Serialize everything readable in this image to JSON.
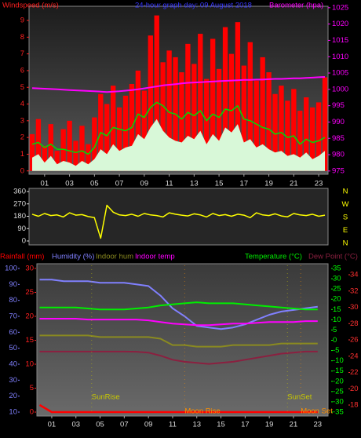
{
  "chart_data": [
    {
      "type": "line",
      "title": "24-hour graph day:  09 August 2018",
      "y_label": "Windspeed (m/s)",
      "y2_label": "Barometer (hpa)",
      "x": [
        0,
        0.5,
        1,
        1.5,
        2,
        2.5,
        3,
        3.5,
        4,
        4.5,
        5,
        5.5,
        6,
        6.5,
        7,
        7.5,
        8,
        8.5,
        9,
        9.5,
        10,
        10.5,
        11,
        11.5,
        12,
        12.5,
        13,
        13.5,
        14,
        14.5,
        15,
        15.5,
        16,
        16.5,
        17,
        17.5,
        18,
        18.5,
        19,
        19.5,
        20,
        20.5,
        21,
        21.5,
        22,
        22.5,
        23,
        23.5
      ],
      "xlim": [
        -0.25,
        23.75
      ],
      "xticks": [
        {
          "value": 1,
          "label": "01"
        },
        {
          "value": 3,
          "label": "03"
        },
        {
          "value": 5,
          "label": "05"
        },
        {
          "value": 7,
          "label": "07"
        },
        {
          "value": 9,
          "label": "09"
        },
        {
          "value": 11,
          "label": "11"
        },
        {
          "value": 13,
          "label": "13"
        },
        {
          "value": 15,
          "label": "15"
        },
        {
          "value": 17,
          "label": "17"
        },
        {
          "value": 19,
          "label": "19"
        },
        {
          "value": 21,
          "label": "21"
        },
        {
          "value": 23,
          "label": "23"
        }
      ],
      "ylim": [
        -0.2,
        9.8
      ],
      "yticks": [
        0,
        1,
        2,
        3,
        4,
        5,
        6,
        7,
        8,
        9
      ],
      "y2lim": [
        974,
        1025.2
      ],
      "y2ticks": [
        975,
        980,
        985,
        990,
        995,
        1000,
        1005,
        1010,
        1015,
        1020,
        1025
      ],
      "series": [
        {
          "color": "#ff0000",
          "mark": "bar",
          "values": [
            2.2,
            3.1,
            1.5,
            2.8,
            1.2,
            2.5,
            3.0,
            1.8,
            2.7,
            1.6,
            3.2,
            4.6,
            4.0,
            5.1,
            3.8,
            4.5,
            5.2,
            6.0,
            4.8,
            8.1,
            9.3,
            6.5,
            7.2,
            6.8,
            5.9,
            7.6,
            6.4,
            8.2,
            5.5,
            7.9,
            6.1,
            8.6,
            7.0,
            8.9,
            6.3,
            7.7,
            5.4,
            6.8,
            5.9,
            4.6,
            5.1,
            4.2,
            4.9,
            3.6,
            4.4,
            3.8,
            4.1,
            5.6
          ]
        },
        {
          "color": "#d8f8d8",
          "mark": "area",
          "values": [
            0.8,
            1.0,
            0.5,
            0.9,
            0.4,
            0.6,
            0.5,
            0.3,
            0.6,
            0.4,
            0.7,
            1.3,
            1.0,
            1.6,
            1.2,
            1.4,
            1.5,
            2.2,
            1.9,
            2.6,
            3.1,
            2.4,
            2.0,
            1.8,
            1.7,
            2.1,
            1.9,
            2.4,
            1.6,
            2.2,
            1.8,
            2.6,
            2.3,
            2.8,
            1.7,
            1.9,
            1.4,
            1.6,
            1.3,
            1.1,
            1.2,
            0.9,
            1.0,
            0.8,
            1.1,
            0.7,
            0.9,
            1.2
          ]
        },
        {
          "color": "#00dd00",
          "mark": "line",
          "values": [
            1.6,
            1.7,
            1.4,
            1.6,
            1.3,
            1.3,
            1.2,
            1.1,
            1.2,
            1.0,
            1.4,
            2.3,
            2.1,
            2.6,
            2.5,
            2.4,
            2.6,
            3.4,
            3.2,
            3.8,
            4.1,
            3.9,
            3.5,
            3.4,
            3.1,
            3.5,
            3.3,
            3.6,
            3.0,
            3.4,
            3.2,
            3.7,
            3.6,
            3.9,
            3.1,
            3.0,
            2.8,
            2.6,
            2.5,
            2.2,
            2.3,
            2.0,
            2.1,
            1.6,
            1.9,
            1.7,
            1.8,
            2.0
          ]
        },
        {
          "color": "#ff00ff",
          "mark": "line",
          "axis": "y2",
          "values": [
            1000.4,
            1000.3,
            1000.2,
            1000.1,
            1000.0,
            999.9,
            999.8,
            999.7,
            999.6,
            999.5,
            999.4,
            999.3,
            999.2,
            999.3,
            999.4,
            999.6,
            999.8,
            1000.0,
            1000.3,
            1000.6,
            1000.9,
            1001.2,
            1001.4,
            1001.6,
            1001.8,
            1002.0,
            1002.1,
            1002.2,
            1002.3,
            1002.4,
            1002.5,
            1002.6,
            1002.7,
            1002.8,
            1002.9,
            1002.9,
            1003.0,
            1003.0,
            1003.1,
            1003.2,
            1003.2,
            1003.3,
            1003.4,
            1003.4,
            1003.5,
            1003.6,
            1003.7,
            1003.8
          ]
        }
      ]
    },
    {
      "type": "line",
      "x": [
        0,
        0.5,
        1,
        1.5,
        2,
        2.5,
        3,
        3.5,
        4,
        4.5,
        5,
        5.5,
        6,
        6.5,
        7,
        7.5,
        8,
        8.5,
        9,
        9.5,
        10,
        10.5,
        11,
        11.5,
        12,
        12.5,
        13,
        13.5,
        14,
        14.5,
        15,
        15.5,
        16,
        16.5,
        17,
        17.5,
        18,
        18.5,
        19,
        19.5,
        20,
        20.5,
        21,
        21.5,
        22,
        22.5,
        23,
        23.5
      ],
      "xlim": [
        -0.25,
        23.75
      ],
      "ylim": [
        0,
        360
      ],
      "yticks": [
        0,
        90,
        180,
        270,
        360
      ],
      "y2lim": [
        0,
        360
      ],
      "y2ticks": [
        {
          "value": 360,
          "label": "N"
        },
        {
          "value": 270,
          "label": "W"
        },
        {
          "value": 180,
          "label": "S"
        },
        {
          "value": 90,
          "label": "E"
        },
        {
          "value": 0,
          "label": "N"
        }
      ],
      "series": [
        {
          "color": "#ffff00",
          "values": [
            195,
            180,
            200,
            185,
            190,
            175,
            205,
            188,
            192,
            178,
            170,
            20,
            260,
            210,
            190,
            185,
            195,
            180,
            200,
            190,
            185,
            175,
            205,
            195,
            188,
            182,
            198,
            190,
            175,
            200,
            185,
            192,
            180,
            195,
            188,
            170,
            205,
            190,
            185,
            198,
            182,
            176,
            200,
            190,
            185,
            195,
            180,
            188
          ]
        }
      ]
    },
    {
      "type": "line",
      "x": [
        0,
        1,
        2,
        3,
        4,
        5,
        6,
        7,
        8,
        9,
        10,
        11,
        12,
        13,
        14,
        15,
        16,
        17,
        18,
        19,
        20,
        21,
        22,
        23
      ],
      "xlim": [
        -0.23,
        23.86
      ],
      "xticks": [
        {
          "value": 1,
          "label": "01"
        },
        {
          "value": 3,
          "label": "03"
        },
        {
          "value": 5,
          "label": "05"
        },
        {
          "value": 7,
          "label": "07"
        },
        {
          "value": 9,
          "label": "09"
        },
        {
          "value": 11,
          "label": "11"
        },
        {
          "value": 13,
          "label": "13"
        },
        {
          "value": 15,
          "label": "15"
        },
        {
          "value": 17,
          "label": "17"
        },
        {
          "value": 19,
          "label": "19"
        },
        {
          "value": 21,
          "label": "21"
        },
        {
          "value": 23,
          "label": "23"
        }
      ],
      "axes": [
        {
          "color": "#ff2020",
          "lim": [
            0,
            30
          ],
          "ticks": [
            0,
            5,
            10,
            15,
            20,
            25,
            30
          ]
        },
        {
          "color": "#8080ff",
          "lim": [
            10,
            100
          ],
          "ticks": [
            10,
            20,
            30,
            40,
            50,
            60,
            70,
            80,
            90,
            100
          ]
        },
        {
          "color": "#00ff00",
          "lim": [
            -35,
            35
          ],
          "ticks": [
            -35,
            -30,
            -25,
            -20,
            -15,
            -10,
            -5,
            0,
            5,
            10,
            15,
            20,
            25,
            30,
            35
          ]
        },
        {
          "color": "#ff3030",
          "lim": [
            18,
            34
          ],
          "ticks": [
            18,
            20,
            22,
            24,
            26,
            28,
            30,
            32,
            34
          ]
        }
      ],
      "series": [
        {
          "name": "Rainfall (mm)",
          "color": "#ff0000",
          "axis": 0,
          "values": [
            1.5,
            0,
            0,
            0,
            0,
            0,
            0,
            0,
            0,
            0,
            0,
            0,
            0,
            0,
            0,
            0,
            0,
            0,
            0,
            0,
            0,
            0,
            0,
            0
          ]
        },
        {
          "name": "Humidity (%)",
          "color": "#8080ff",
          "axis": 1,
          "values": [
            93,
            93,
            92,
            92,
            92,
            91,
            91,
            91,
            90,
            89,
            83,
            75,
            70,
            64,
            63,
            62,
            63,
            65,
            68,
            71,
            73,
            74,
            75,
            76
          ]
        },
        {
          "name": "Indoor hum",
          "color": "#8a8a20",
          "axis": 1,
          "values": [
            58,
            58,
            58,
            58,
            58,
            57,
            57,
            57,
            57,
            57,
            56,
            52,
            52,
            51,
            51,
            51,
            52,
            52,
            52,
            52,
            53,
            53,
            53,
            53
          ]
        },
        {
          "name": "Indoor temp",
          "color": "#ff00ff",
          "axis": 3,
          "values": [
            28.6,
            28.6,
            28.6,
            28.6,
            28.5,
            28.5,
            28.5,
            28.5,
            28.5,
            28.4,
            28.2,
            28.0,
            27.9,
            27.8,
            27.8,
            27.9,
            28.0,
            28.0,
            28.1,
            28.2,
            28.2,
            28.2,
            28.3,
            28.3
          ]
        },
        {
          "name": "Temperature (°C)",
          "color": "#00ee00",
          "axis": 2,
          "values": [
            16,
            16,
            16,
            16,
            15.5,
            15,
            15,
            15,
            15.5,
            16,
            17,
            17.5,
            18,
            18.5,
            18,
            18,
            18,
            17.5,
            17,
            16.5,
            16,
            15.5,
            15,
            15
          ]
        },
        {
          "name": "Dew Point (°C)",
          "color": "#8b2040",
          "axis": 2,
          "values": [
            -5.5,
            -5.5,
            -5.5,
            -5.5,
            -5.5,
            -5.5,
            -5.5,
            -5.5,
            -5.6,
            -6,
            -7.5,
            -9.5,
            -10.5,
            -11,
            -11.5,
            -11,
            -10.5,
            -9.5,
            -8.5,
            -7.5,
            -6.5,
            -6,
            -5.5,
            -5.5
          ]
        }
      ],
      "annotations": [
        {
          "text": "SunRise",
          "x": 4.3,
          "color": "#c8c800"
        },
        {
          "text": "Moon Rise",
          "x": 12.0,
          "color": "#ff9000"
        },
        {
          "text": "SunSet",
          "x": 20.5,
          "color": "#c8c800"
        },
        {
          "text": "Moon Set",
          "x": 21.6,
          "color": "#ff9000"
        }
      ]
    }
  ]
}
